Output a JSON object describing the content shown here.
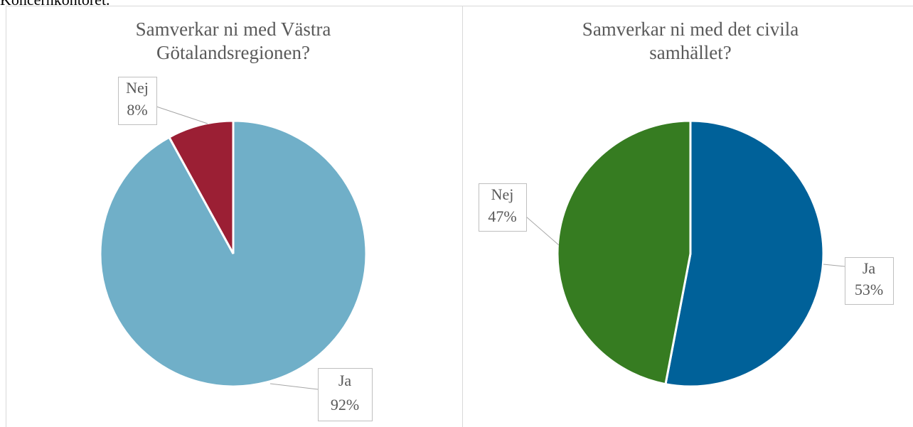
{
  "heading": "Koncernkontoret.",
  "chart_data": [
    {
      "type": "pie",
      "title": [
        "Samverkar ni med Västra",
        "Götalandsregionen?"
      ],
      "categories": [
        "Ja",
        "Nej"
      ],
      "values": [
        92,
        8
      ],
      "value_labels": [
        "92%",
        "8%"
      ],
      "colors": [
        "#70afc8",
        "#9b1f34"
      ]
    },
    {
      "type": "pie",
      "title": [
        "Samverkar ni med det civila",
        "samhället?"
      ],
      "categories": [
        "Ja",
        "Nej"
      ],
      "values": [
        53,
        47
      ],
      "value_labels": [
        "53%",
        "47%"
      ],
      "colors": [
        "#006199",
        "#367c21"
      ]
    }
  ]
}
